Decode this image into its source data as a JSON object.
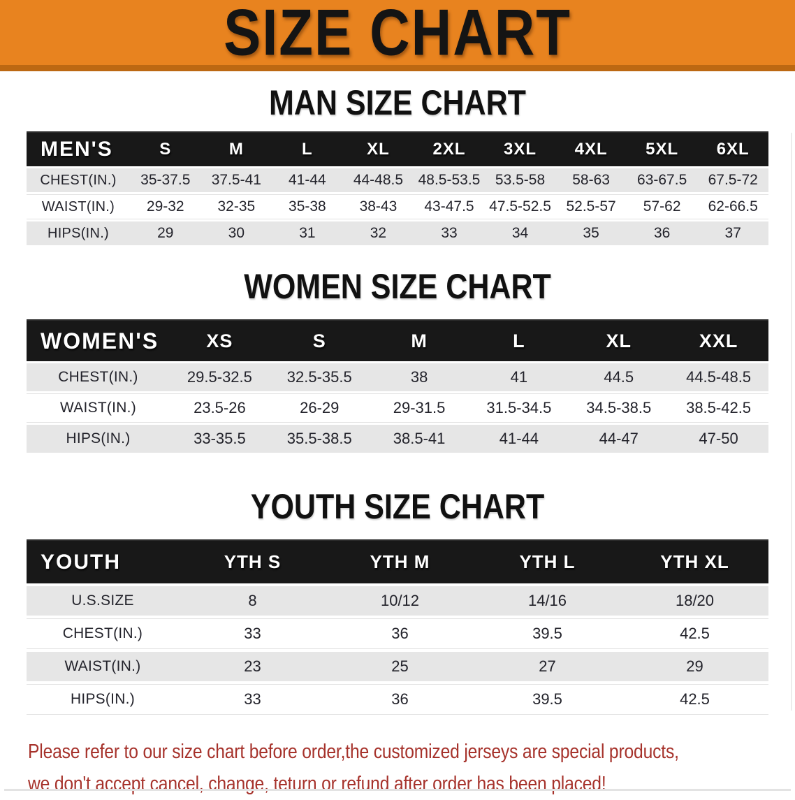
{
  "banner": {
    "title": "SIZE CHART",
    "background": "#E8831F",
    "border_color": "#BC6812",
    "text_color": "#141414"
  },
  "sections": [
    {
      "heading": "MAN SIZE CHART",
      "table": {
        "label": "MEN'S",
        "columns": [
          "S",
          "M",
          "L",
          "XL",
          "2XL",
          "3XL",
          "4XL",
          "5XL",
          "6XL"
        ],
        "rows": [
          {
            "label": "CHEST(IN.)",
            "values": [
              "35-37.5",
              "37.5-41",
              "41-44",
              "44-48.5",
              "48.5-53.5",
              "53.5-58",
              "58-63",
              "63-67.5",
              "67.5-72"
            ]
          },
          {
            "label": "WAIST(IN.)",
            "values": [
              "29-32",
              "32-35",
              "35-38",
              "38-43",
              "43-47.5",
              "47.5-52.5",
              "52.5-57",
              "57-62",
              "62-66.5"
            ]
          },
          {
            "label": "HIPS(IN.)",
            "values": [
              "29",
              "30",
              "31",
              "32",
              "33",
              "34",
              "35",
              "36",
              "37"
            ]
          }
        ]
      }
    },
    {
      "heading": "WOMEN SIZE CHART",
      "table": {
        "label": "WOMEN'S",
        "columns": [
          "XS",
          "S",
          "M",
          "L",
          "XL",
          "XXL"
        ],
        "rows": [
          {
            "label": "CHEST(IN.)",
            "values": [
              "29.5-32.5",
              "32.5-35.5",
              "38",
              "41",
              "44.5",
              "44.5-48.5"
            ]
          },
          {
            "label": "WAIST(IN.)",
            "values": [
              "23.5-26",
              "26-29",
              "29-31.5",
              "31.5-34.5",
              "34.5-38.5",
              "38.5-42.5"
            ]
          },
          {
            "label": "HIPS(IN.)",
            "values": [
              "33-35.5",
              "35.5-38.5",
              "38.5-41",
              "41-44",
              "44-47",
              "47-50"
            ]
          }
        ]
      }
    },
    {
      "heading": "YOUTH SIZE CHART",
      "table": {
        "label": "YOUTH",
        "columns": [
          "YTH S",
          "YTH M",
          "YTH L",
          "YTH XL"
        ],
        "rows": [
          {
            "label": "U.S.SIZE",
            "values": [
              "8",
              "10/12",
              "14/16",
              "18/20"
            ]
          },
          {
            "label": "CHEST(IN.)",
            "values": [
              "33",
              "36",
              "39.5",
              "42.5"
            ]
          },
          {
            "label": "WAIST(IN.)",
            "values": [
              "23",
              "25",
              "27",
              "29"
            ]
          },
          {
            "label": "HIPS(IN.)",
            "values": [
              "33",
              "36",
              "39.5",
              "42.5"
            ]
          }
        ]
      }
    }
  ],
  "footer": {
    "line1": "Please refer to our size chart before order,the customized jerseys are special products,",
    "line2": "we don't accept cancel, change, teturn or refund after order has been placed!",
    "text_color": "#A6322B"
  },
  "table_style": {
    "header_background": "#181818",
    "header_text": "#FFFFFF",
    "stripe_color": "#E6E6E6"
  }
}
